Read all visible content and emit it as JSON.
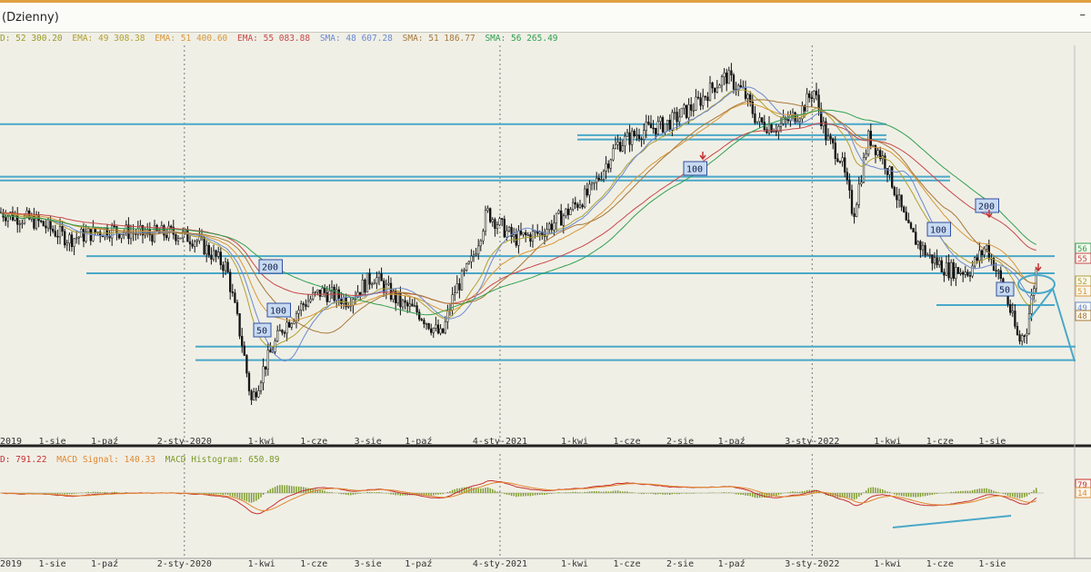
{
  "window": {
    "title": "(Dzienny)",
    "minimize_glyph": "–"
  },
  "legend": {
    "items": [
      {
        "text": "D: 52 300.20",
        "color": "#9a9a28"
      },
      {
        "text": "EMA: 49 308.38",
        "color": "#b0a030"
      },
      {
        "text": "EMA: 51 400.60",
        "color": "#d89838"
      },
      {
        "text": "EMA: 55 083.88",
        "color": "#c84848"
      },
      {
        "text": "SMA: 48 607.28",
        "color": "#6a8ad0"
      },
      {
        "text": "SMA: 51 186.77",
        "color": "#a87838"
      },
      {
        "text": "SMA: 56 265.49",
        "color": "#30a050"
      }
    ]
  },
  "macd_legend": {
    "items": [
      {
        "text": "D: 791.22",
        "color": "#c83030"
      },
      {
        "text": "MACD Signal: 140.33",
        "color": "#e08830"
      },
      {
        "text": "MACD Histogram: 650.89",
        "color": "#7a9a28"
      }
    ]
  },
  "annotations": {
    "ma_boxes": [
      {
        "text": "200"
      },
      {
        "text": "100"
      },
      {
        "text": "50"
      },
      {
        "text": "100"
      },
      {
        "text": "200"
      },
      {
        "text": "100"
      },
      {
        "text": "50"
      }
    ]
  },
  "axis_tags": {
    "price": [
      "56",
      "55",
      "52",
      "51",
      "49",
      "48"
    ],
    "macd": [
      "79",
      "14"
    ]
  },
  "chart_data": [
    {
      "type": "candlestick",
      "x_ticks": [
        "2019",
        "1-sie",
        "1-paź",
        "2-sty-2020",
        "1-kwi",
        "1-cze",
        "3-sie",
        "1-paź",
        "4-sty-2021",
        "1-kwi",
        "1-cze",
        "2-sie",
        "1-paź",
        "3-sty-2022",
        "1-kwi",
        "1-cze",
        "1-sie"
      ],
      "x_range": [
        "2019-06",
        "2022-09-30"
      ],
      "price_path": [
        [
          "2019-06-01",
          51000
        ],
        [
          "2019-07-15",
          50200
        ],
        [
          "2019-08-20",
          48800
        ],
        [
          "2019-10-05",
          49600
        ],
        [
          "2019-11-15",
          49200
        ],
        [
          "2019-12-20",
          49300
        ],
        [
          "2020-01-15",
          48800
        ],
        [
          "2020-02-20",
          46500
        ],
        [
          "2020-03-10",
          40000
        ],
        [
          "2020-03-20",
          35500
        ],
        [
          "2020-04-05",
          38500
        ],
        [
          "2020-04-25",
          41500
        ],
        [
          "2020-05-20",
          43500
        ],
        [
          "2020-06-10",
          44500
        ],
        [
          "2020-07-10",
          43800
        ],
        [
          "2020-08-10",
          45800
        ],
        [
          "2020-09-10",
          43500
        ],
        [
          "2020-10-01",
          42800
        ],
        [
          "2020-10-28",
          40800
        ],
        [
          "2020-11-12",
          44500
        ],
        [
          "2020-12-01",
          46800
        ],
        [
          "2020-12-20",
          51000
        ],
        [
          "2021-01-20",
          48800
        ],
        [
          "2021-02-20",
          49300
        ],
        [
          "2021-03-20",
          50800
        ],
        [
          "2021-04-20",
          52700
        ],
        [
          "2021-05-20",
          56500
        ],
        [
          "2021-06-20",
          57700
        ],
        [
          "2021-07-20",
          58300
        ],
        [
          "2021-08-20",
          59800
        ],
        [
          "2021-09-10",
          61300
        ],
        [
          "2021-09-25",
          62100
        ],
        [
          "2021-10-15",
          60800
        ],
        [
          "2021-11-01",
          58300
        ],
        [
          "2021-11-25",
          58000
        ],
        [
          "2021-12-20",
          59200
        ],
        [
          "2022-01-05",
          61000
        ],
        [
          "2022-01-20",
          57000
        ],
        [
          "2022-02-05",
          55500
        ],
        [
          "2022-02-20",
          50800
        ],
        [
          "2022-03-10",
          57200
        ],
        [
          "2022-03-30",
          55000
        ],
        [
          "2022-04-25",
          49500
        ],
        [
          "2022-05-20",
          47300
        ],
        [
          "2022-06-10",
          46300
        ],
        [
          "2022-07-05",
          46200
        ],
        [
          "2022-07-25",
          48200
        ],
        [
          "2022-08-15",
          44700
        ],
        [
          "2022-09-01",
          40400
        ],
        [
          "2022-09-10",
          41500
        ],
        [
          "2022-09-22",
          46500
        ],
        [
          "2022-09-30",
          52300
        ]
      ],
      "moving_averages": {
        "EMA": [
          49308.38,
          51400.6,
          55083.88
        ],
        "SMA": [
          48607.28,
          51186.77,
          56265.49
        ]
      },
      "horizontal_levels": [
        58200,
        57300,
        56950,
        53900,
        53600,
        47400,
        46000,
        43400,
        40000,
        38900
      ],
      "grid": false
    },
    {
      "type": "macd",
      "series": [
        {
          "name": "MACD",
          "last": 791.22
        },
        {
          "name": "MACD Signal",
          "last": 140.33
        },
        {
          "name": "MACD Histogram",
          "last": 650.89
        }
      ]
    }
  ]
}
